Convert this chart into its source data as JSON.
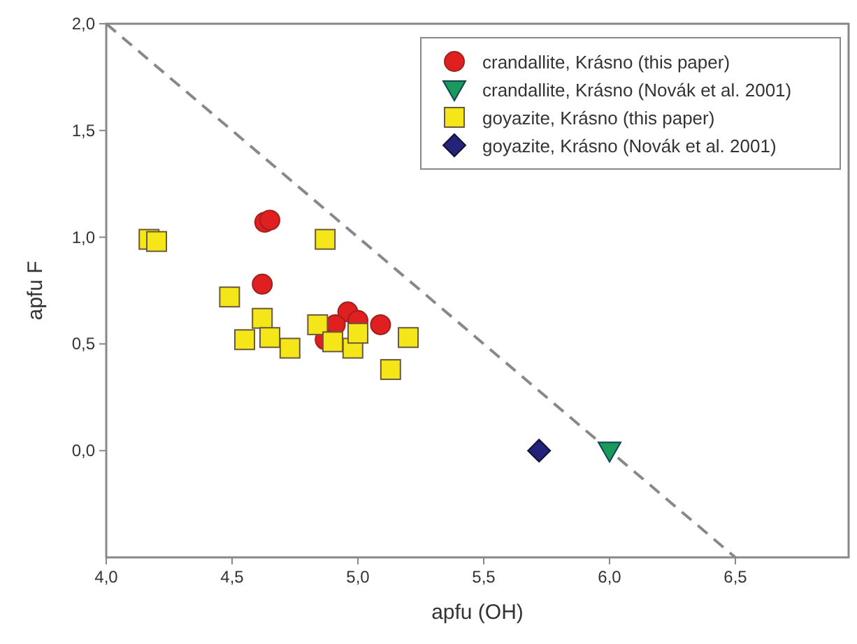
{
  "chart_data": {
    "type": "scatter",
    "xlabel": "apfu (OH)",
    "ylabel": "apfu F",
    "xlim": [
      4,
      6.95
    ],
    "ylim": [
      -0.5,
      2
    ],
    "xticks": [
      {
        "value": 4,
        "label": "4,0"
      },
      {
        "value": 4.5,
        "label": "4,5"
      },
      {
        "value": 5,
        "label": "5,0"
      },
      {
        "value": 5.5,
        "label": "5,5"
      },
      {
        "value": 6,
        "label": "6,0"
      },
      {
        "value": 6.5,
        "label": "6,5"
      }
    ],
    "yticks": [
      {
        "value": 0,
        "label": "0,0"
      },
      {
        "value": 0.5,
        "label": "0,5"
      },
      {
        "value": 1,
        "label": "1,0"
      },
      {
        "value": 1.5,
        "label": "1,5"
      },
      {
        "value": 2,
        "label": "2,0"
      }
    ],
    "grid": false,
    "legend": "top right",
    "series": [
      {
        "type": "line",
        "color": "#888888",
        "line_style": "dashed",
        "x": [
          4,
          6.5
        ],
        "values": [
          2,
          -0.5
        ]
      },
      {
        "name": "crandallite, Krásno (this paper)",
        "color": "#e02020",
        "marker": "circle",
        "x": [
          4.63,
          4.65,
          4.62,
          4.96,
          4.91,
          5.0,
          5.09,
          4.87
        ],
        "values": [
          1.07,
          1.08,
          0.78,
          0.65,
          0.59,
          0.61,
          0.59,
          0.52
        ]
      },
      {
        "name": "crandallite, Krásno (Novák et al. 2001)",
        "color": "#1a9a5a",
        "marker": "triangle",
        "x": [
          6.0
        ],
        "values": [
          0
        ]
      },
      {
        "name": "goyazite, Krásno (this paper)",
        "color": "#f5e61a",
        "marker": "square",
        "x": [
          4.17,
          4.2,
          4.87,
          4.49,
          4.62,
          4.55,
          4.65,
          4.73,
          4.84,
          4.9,
          4.98,
          5.0,
          5.2,
          5.13
        ],
        "values": [
          0.99,
          0.98,
          0.99,
          0.72,
          0.62,
          0.52,
          0.53,
          0.48,
          0.59,
          0.51,
          0.48,
          0.55,
          0.53,
          0.38
        ]
      },
      {
        "name": "goyazite, Krásno (Novák et al. 2001)",
        "color": "#23237a",
        "marker": "diamond",
        "x": [
          5.72
        ],
        "values": [
          0
        ]
      }
    ]
  }
}
